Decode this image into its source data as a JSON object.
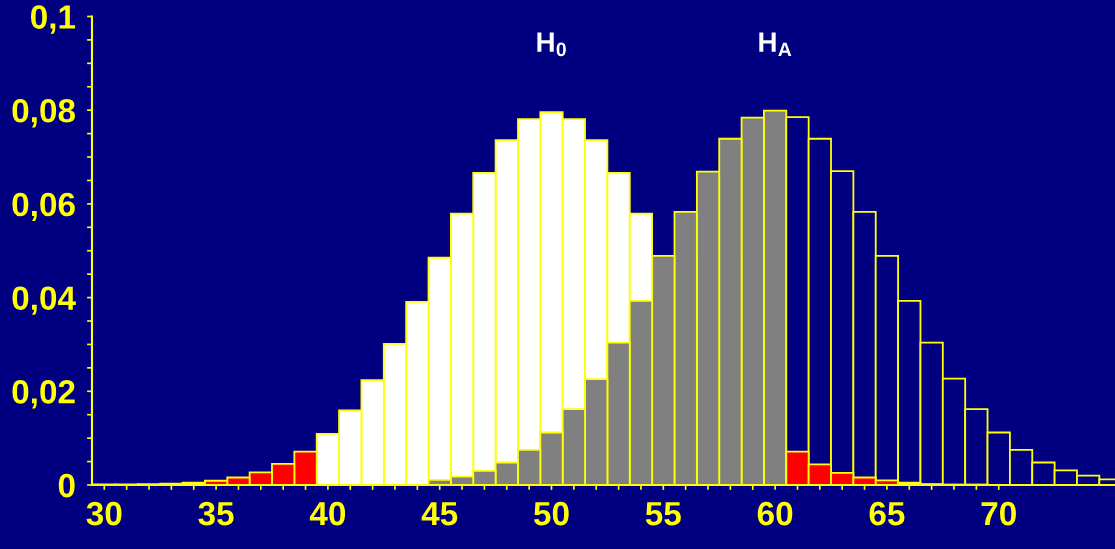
{
  "chart_data": {
    "type": "histogram",
    "bins": [
      29.5,
      30.5,
      31.5,
      32.5,
      33.5,
      34.5,
      35.5,
      36.5,
      37.5,
      38.5,
      39.5,
      40.5,
      41.5,
      42.5,
      43.5,
      44.5,
      45.5,
      46.5,
      47.5,
      48.5,
      49.5,
      50.5,
      51.5,
      52.5,
      53.5,
      54.5,
      55.5,
      56.5,
      57.5,
      58.5,
      59.5,
      60.5,
      61.5,
      62.5,
      63.5,
      64.5,
      65.5,
      66.5,
      67.5,
      68.5,
      69.5,
      70.5,
      71.5,
      72.5,
      73.5,
      74.5,
      75.5
    ],
    "series": [
      {
        "values": [
          0.0001,
          0.0001,
          0.0002,
          0.0003,
          0.0005,
          0.0009,
          0.0016,
          0.0027,
          0.0045,
          0.0071,
          0.0109,
          0.0159,
          0.0224,
          0.0301,
          0.0391,
          0.0485,
          0.0579,
          0.0666,
          0.0736,
          0.0781,
          0.0796,
          0.0781,
          0.0736,
          0.0666,
          0.0579,
          null,
          null,
          null,
          null,
          null,
          null,
          0.0071,
          0.0044,
          0.0026,
          0.0016,
          0.001,
          0.0005,
          0.0002,
          0.0001,
          0.0001,
          null,
          null,
          null,
          null,
          null,
          null
        ],
        "colors": [
          "#ffffff",
          "#ffffff",
          "#ffffff",
          "#ffffff",
          "#ffffff",
          "#ff0000",
          "#ff0000",
          "#ff0000",
          "#ff0000",
          "#ff0000",
          "#ffffff",
          "#ffffff",
          "#ffffff",
          "#ffffff",
          "#ffffff",
          "#ffffff",
          "#ffffff",
          "#ffffff",
          "#ffffff",
          "#ffffff",
          "#ffffff",
          "#ffffff",
          "#ffffff",
          "#ffffff",
          "#ffffff",
          "#ffffff",
          "#ffffff",
          "#ffffff",
          "#ffffff",
          "#ffffff",
          "#ffffff",
          "#ff0000",
          "#ff0000",
          "#ff0000",
          "#ff0000",
          "#ff0000",
          "#ffffff",
          "#ffffff",
          "#ffffff",
          "#ffffff",
          "#ffffff",
          "#ffffff",
          "#ffffff",
          "#ffffff",
          "#ffffff",
          "#ffffff"
        ]
      },
      {
        "values": [
          null,
          null,
          null,
          null,
          null,
          null,
          null,
          null,
          null,
          null,
          null,
          null,
          null,
          null,
          null,
          0.0011,
          0.0018,
          0.003,
          0.0048,
          0.0075,
          0.0112,
          0.0162,
          0.0226,
          0.0304,
          0.0393,
          0.0489,
          0.0583,
          0.0669,
          0.0739,
          0.0784,
          0.0799,
          0.0785,
          0.0739,
          0.067,
          0.0583,
          0.0489,
          0.0393,
          0.0304,
          0.0227,
          0.0162,
          0.0112,
          0.0075,
          0.0048,
          0.0031,
          0.002,
          0.0012
        ],
        "colors": [
          "#808080",
          "#808080",
          "#808080",
          "#808080",
          "#808080",
          "#808080",
          "#808080",
          "#808080",
          "#808080",
          "#808080",
          "#808080",
          "#808080",
          "#808080",
          "#808080",
          "#808080",
          "#808080",
          "#808080",
          "#808080",
          "#808080",
          "#808080",
          "#808080",
          "#808080",
          "#808080",
          "#808080",
          "#808080",
          "#808080",
          "#808080",
          "#808080",
          "#808080",
          "#808080",
          "#808080",
          "#000080",
          "#000080",
          "#000080",
          "#000080",
          "#000080",
          "#000080",
          "#000080",
          "#000080",
          "#000080",
          "#000080",
          "#000080",
          "#000080",
          "#000080",
          "#000080",
          "#000080"
        ]
      }
    ],
    "xlim": [
      29.45,
      75.2
    ],
    "ylim": [
      0,
      0.1
    ],
    "xticks": [
      30,
      {
        "value": 31,
        "label": null
      },
      {
        "value": 32,
        "label": null
      },
      {
        "value": 33,
        "label": null
      },
      {
        "value": 34,
        "label": null
      },
      35,
      {
        "value": 36,
        "label": null
      },
      {
        "value": 37,
        "label": null
      },
      {
        "value": 38,
        "label": null
      },
      {
        "value": 39,
        "label": null
      },
      40,
      {
        "value": 41,
        "label": null
      },
      {
        "value": 42,
        "label": null
      },
      {
        "value": 43,
        "label": null
      },
      {
        "value": 44,
        "label": null
      },
      45,
      {
        "value": 46,
        "label": null
      },
      {
        "value": 47,
        "label": null
      },
      {
        "value": 48,
        "label": null
      },
      {
        "value": 49,
        "label": null
      },
      50,
      {
        "value": 51,
        "label": null
      },
      {
        "value": 52,
        "label": null
      },
      {
        "value": 53,
        "label": null
      },
      {
        "value": 54,
        "label": null
      },
      55,
      {
        "value": 56,
        "label": null
      },
      {
        "value": 57,
        "label": null
      },
      {
        "value": 58,
        "label": null
      },
      {
        "value": 59,
        "label": null
      },
      60,
      {
        "value": 61,
        "label": null
      },
      {
        "value": 62,
        "label": null
      },
      {
        "value": 63,
        "label": null
      },
      {
        "value": 64,
        "label": null
      },
      65,
      {
        "value": 66,
        "label": null
      },
      {
        "value": 67,
        "label": null
      },
      {
        "value": 68,
        "label": null
      },
      {
        "value": 69,
        "label": null
      },
      70
    ],
    "yticks": [
      0,
      {
        "value": 0.005,
        "label": null
      },
      {
        "value": 0.01,
        "label": null
      },
      {
        "value": 0.015,
        "label": null
      },
      {
        "value": 0.02,
        "label": "0,02"
      },
      {
        "value": 0.025,
        "label": null
      },
      {
        "value": 0.03,
        "label": null
      },
      {
        "value": 0.035,
        "label": null
      },
      {
        "value": 0.04,
        "label": "0,04"
      },
      {
        "value": 0.045,
        "label": null
      },
      {
        "value": 0.05,
        "label": null
      },
      {
        "value": 0.055,
        "label": null
      },
      {
        "value": 0.06,
        "label": "0,06"
      },
      {
        "value": 0.065,
        "label": null
      },
      {
        "value": 0.07,
        "label": null
      },
      {
        "value": 0.075,
        "label": null
      },
      {
        "value": 0.08,
        "label": "0,08"
      },
      {
        "value": 0.085,
        "label": null
      },
      {
        "value": 0.09,
        "label": null
      },
      {
        "value": 0.095,
        "label": null
      },
      {
        "value": 0.1,
        "label": "0,1"
      }
    ],
    "annotations": [
      "H$_{0}$",
      "H$_{A}$"
    ],
    "grid": false,
    "legend": false
  }
}
